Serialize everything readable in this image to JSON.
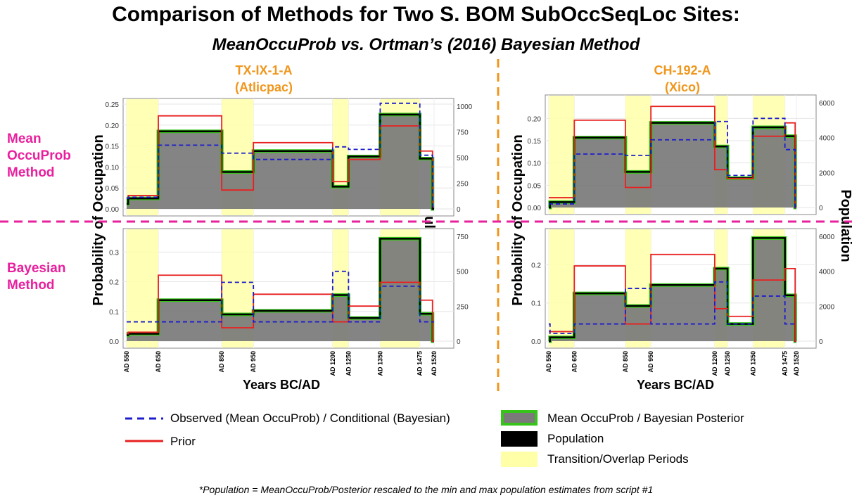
{
  "title": "Comparison of Methods for Two S. BOM SubOccSeqLoc Sites:",
  "subtitle": "MeanOccuProb vs. Ortman’s (2016) Bayesian Method",
  "sites": [
    {
      "name": "TX-IX-1-A",
      "sub": "(Atlicpac)"
    },
    {
      "name": "CH-192-A",
      "sub": "(Xico)"
    }
  ],
  "row_labels": {
    "top": [
      "Mean",
      "OccuProb",
      "Method"
    ],
    "bottom": [
      "Bayesian",
      "Method"
    ]
  },
  "axis": {
    "ylabel": "Probability  of Occupation",
    "ylabel_right": "Population",
    "xlabel": "Years BC/AD"
  },
  "legend": {
    "observed": "Observed (Mean OccuProb) / Conditional (Bayesian)",
    "prior": "Prior",
    "posterior": "Mean OccuProb / Bayesian Posterior",
    "population": "Population",
    "transition": "Transition/Overlap Periods"
  },
  "colors": {
    "observed": "#1c1ccc",
    "prior": "#e82020",
    "posterior_fill": "#7a7a7a",
    "posterior_border": "#36c41a",
    "population": "#000000",
    "transition": "#ffffa8",
    "site_label": "#f0961c",
    "row_label": "#e8209e"
  },
  "footnote": "*Population = MeanOccuProb/Posterior rescaled to the min and max population estimates from script #1",
  "chart_data": [
    {
      "type": "area",
      "site": "TX-IX-1-A",
      "method": "Mean OccuProb",
      "x_breaks": [
        550,
        650,
        850,
        950,
        1200,
        1250,
        1350,
        1475,
        1520
      ],
      "x_tick_labels": [
        "AD 550",
        "AD 650",
        "AD 850",
        "AD 950",
        "AD 1200",
        "AD 1250",
        "AD 1350",
        "AD 1475",
        "AD 1520"
      ],
      "transition_periods": [
        [
          550,
          650
        ],
        [
          850,
          950
        ],
        [
          1200,
          1250
        ],
        [
          1350,
          1475
        ]
      ],
      "ylim": [
        0,
        0.25
      ],
      "yticks": [
        0.0,
        0.05,
        0.1,
        0.15,
        0.2,
        0.25
      ],
      "ytick_labels": [
        "0.00",
        "0.05",
        "0.10",
        "0.15",
        "0.20",
        "0.25"
      ],
      "y2ticks": [
        0,
        250,
        500,
        750,
        1000
      ],
      "y2tick_labels": [
        "0",
        "250",
        "500",
        "750",
        "1000"
      ],
      "segments": [
        {
          "x0": 550,
          "x1": 555,
          "posterior": 0.012,
          "observed": 0.025,
          "prior": 0.025
        },
        {
          "x0": 555,
          "x1": 650,
          "posterior": 0.025,
          "observed": 0.028,
          "prior": 0.032
        },
        {
          "x0": 650,
          "x1": 850,
          "posterior": 0.185,
          "observed": 0.152,
          "prior": 0.222
        },
        {
          "x0": 850,
          "x1": 950,
          "posterior": 0.088,
          "observed": 0.133,
          "prior": 0.045
        },
        {
          "x0": 950,
          "x1": 1200,
          "posterior": 0.138,
          "observed": 0.118,
          "prior": 0.158
        },
        {
          "x0": 1200,
          "x1": 1250,
          "posterior": 0.053,
          "observed": 0.148,
          "prior": 0.065
        },
        {
          "x0": 1250,
          "x1": 1350,
          "posterior": 0.125,
          "observed": 0.142,
          "prior": 0.118
        },
        {
          "x0": 1350,
          "x1": 1475,
          "posterior": 0.225,
          "observed": 0.252,
          "prior": 0.198
        },
        {
          "x0": 1475,
          "x1": 1515,
          "posterior": 0.12,
          "observed": 0.128,
          "prior": 0.138
        },
        {
          "x0": 1515,
          "x1": 1520,
          "posterior": 0.0,
          "observed": 0.005,
          "prior": 0.005
        }
      ]
    },
    {
      "type": "area",
      "site": "CH-192-A",
      "method": "Mean OccuProb",
      "x_breaks": [
        550,
        650,
        850,
        950,
        1200,
        1250,
        1350,
        1475,
        1520
      ],
      "x_tick_labels": [
        "AD 550",
        "AD 650",
        "AD 850",
        "AD 950",
        "AD 1200",
        "AD 1250",
        "AD 1350",
        "AD 1475",
        "AD 1520"
      ],
      "transition_periods": [
        [
          550,
          650
        ],
        [
          850,
          950
        ],
        [
          1200,
          1250
        ],
        [
          1350,
          1475
        ]
      ],
      "ylim": [
        0,
        0.24
      ],
      "yticks": [
        0.0,
        0.05,
        0.1,
        0.15,
        0.2
      ],
      "ytick_labels": [
        "0.00",
        "0.05",
        "0.10",
        "0.15",
        "0.20"
      ],
      "y2ticks": [
        0,
        2000,
        4000,
        6000
      ],
      "y2tick_labels": [
        "0",
        "2000",
        "4000",
        "6000"
      ],
      "segments": [
        {
          "x0": 550,
          "x1": 555,
          "posterior": 0.0,
          "observed": 0.008,
          "prior": 0.022
        },
        {
          "x0": 555,
          "x1": 650,
          "posterior": 0.012,
          "observed": 0.008,
          "prior": 0.022
        },
        {
          "x0": 650,
          "x1": 850,
          "posterior": 0.157,
          "observed": 0.12,
          "prior": 0.196
        },
        {
          "x0": 850,
          "x1": 950,
          "posterior": 0.08,
          "observed": 0.117,
          "prior": 0.045
        },
        {
          "x0": 950,
          "x1": 1200,
          "posterior": 0.19,
          "observed": 0.152,
          "prior": 0.227
        },
        {
          "x0": 1200,
          "x1": 1250,
          "posterior": 0.137,
          "observed": 0.193,
          "prior": 0.085
        },
        {
          "x0": 1250,
          "x1": 1350,
          "posterior": 0.066,
          "observed": 0.072,
          "prior": 0.065
        },
        {
          "x0": 1350,
          "x1": 1475,
          "posterior": 0.18,
          "observed": 0.2,
          "prior": 0.16
        },
        {
          "x0": 1475,
          "x1": 1515,
          "posterior": 0.16,
          "observed": 0.13,
          "prior": 0.19
        },
        {
          "x0": 1515,
          "x1": 1520,
          "posterior": 0.0,
          "observed": 0.0,
          "prior": 0.0
        }
      ]
    },
    {
      "type": "area",
      "site": "TX-IX-1-A",
      "method": "Bayesian",
      "x_breaks": [
        550,
        650,
        850,
        950,
        1200,
        1250,
        1350,
        1475,
        1520
      ],
      "x_tick_labels": [
        "AD 550",
        "AD 650",
        "AD 850",
        "AD 950",
        "AD 1200",
        "AD 1250",
        "AD 1350",
        "AD 1475",
        "AD 1520"
      ],
      "transition_periods": [
        [
          550,
          650
        ],
        [
          850,
          950
        ],
        [
          1200,
          1250
        ],
        [
          1350,
          1475
        ]
      ],
      "ylim": [
        0,
        0.36
      ],
      "yticks": [
        0.0,
        0.1,
        0.2,
        0.3
      ],
      "ytick_labels": [
        "0.0",
        "0.1",
        "0.2",
        "0.3"
      ],
      "y2ticks": [
        0,
        250,
        500,
        750
      ],
      "y2tick_labels": [
        "0",
        "250",
        "500",
        "750"
      ],
      "segments": [
        {
          "x0": 550,
          "x1": 555,
          "posterior": 0.02,
          "observed": 0.065,
          "prior": 0.025
        },
        {
          "x0": 555,
          "x1": 650,
          "posterior": 0.025,
          "observed": 0.065,
          "prior": 0.03
        },
        {
          "x0": 650,
          "x1": 850,
          "posterior": 0.138,
          "observed": 0.065,
          "prior": 0.222
        },
        {
          "x0": 850,
          "x1": 950,
          "posterior": 0.09,
          "observed": 0.198,
          "prior": 0.045
        },
        {
          "x0": 950,
          "x1": 1200,
          "posterior": 0.102,
          "observed": 0.065,
          "prior": 0.158
        },
        {
          "x0": 1200,
          "x1": 1250,
          "posterior": 0.155,
          "observed": 0.235,
          "prior": 0.065
        },
        {
          "x0": 1250,
          "x1": 1350,
          "posterior": 0.078,
          "observed": 0.065,
          "prior": 0.118
        },
        {
          "x0": 1350,
          "x1": 1475,
          "posterior": 0.345,
          "observed": 0.185,
          "prior": 0.198
        },
        {
          "x0": 1475,
          "x1": 1515,
          "posterior": 0.092,
          "observed": 0.065,
          "prior": 0.138
        },
        {
          "x0": 1515,
          "x1": 1520,
          "posterior": 0.0,
          "observed": 0.065,
          "prior": 0.0
        }
      ]
    },
    {
      "type": "area",
      "site": "CH-192-A",
      "method": "Bayesian",
      "x_breaks": [
        550,
        650,
        850,
        950,
        1200,
        1250,
        1350,
        1475,
        1520
      ],
      "x_tick_labels": [
        "AD 550",
        "AD 650",
        "AD 850",
        "AD 950",
        "AD 1200",
        "AD 1250",
        "AD 1350",
        "AD 1475",
        "AD 1520"
      ],
      "transition_periods": [
        [
          550,
          650
        ],
        [
          850,
          950
        ],
        [
          1200,
          1250
        ],
        [
          1350,
          1475
        ]
      ],
      "ylim": [
        0,
        0.28
      ],
      "yticks": [
        0.0,
        0.1,
        0.2
      ],
      "ytick_labels": [
        "0.0",
        "0.1",
        "0.2"
      ],
      "y2ticks": [
        0,
        2000,
        4000,
        6000
      ],
      "y2tick_labels": [
        "0",
        "2000",
        "4000",
        "6000"
      ],
      "segments": [
        {
          "x0": 550,
          "x1": 555,
          "posterior": 0.0,
          "observed": 0.045,
          "prior": 0.025
        },
        {
          "x0": 555,
          "x1": 650,
          "posterior": 0.01,
          "observed": 0.02,
          "prior": 0.025
        },
        {
          "x0": 650,
          "x1": 850,
          "posterior": 0.125,
          "observed": 0.045,
          "prior": 0.197
        },
        {
          "x0": 850,
          "x1": 950,
          "posterior": 0.092,
          "observed": 0.138,
          "prior": 0.045
        },
        {
          "x0": 950,
          "x1": 1200,
          "posterior": 0.147,
          "observed": 0.045,
          "prior": 0.227
        },
        {
          "x0": 1200,
          "x1": 1250,
          "posterior": 0.19,
          "observed": 0.155,
          "prior": 0.085
        },
        {
          "x0": 1250,
          "x1": 1350,
          "posterior": 0.045,
          "observed": 0.045,
          "prior": 0.065
        },
        {
          "x0": 1350,
          "x1": 1475,
          "posterior": 0.27,
          "observed": 0.118,
          "prior": 0.16
        },
        {
          "x0": 1475,
          "x1": 1515,
          "posterior": 0.12,
          "observed": 0.045,
          "prior": 0.19
        },
        {
          "x0": 1515,
          "x1": 1520,
          "posterior": 0.0,
          "observed": 0.045,
          "prior": 0.0
        }
      ]
    }
  ]
}
